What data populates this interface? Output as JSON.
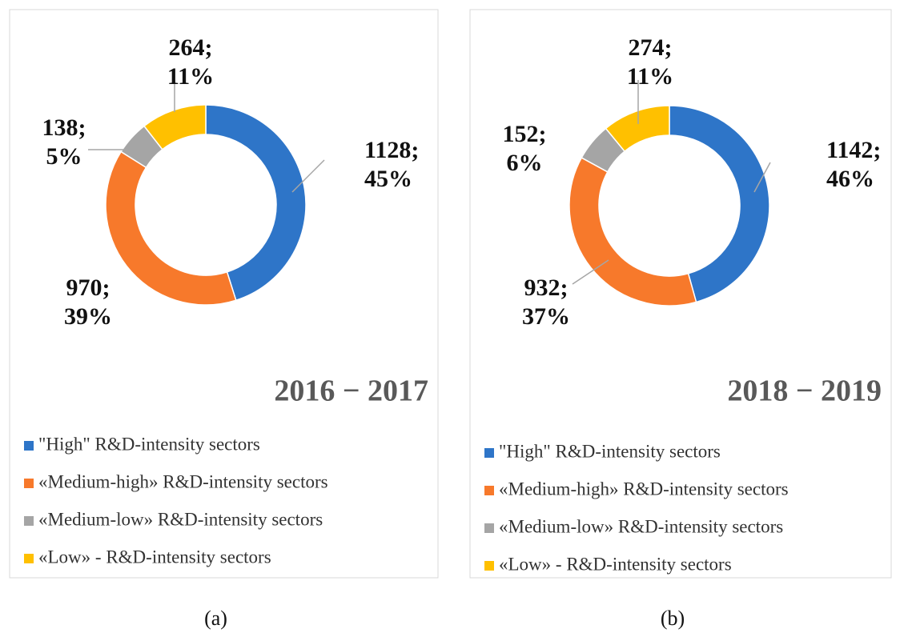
{
  "chart_data": [
    {
      "type": "pie",
      "title": "2016 − 2017",
      "caption": "(a)",
      "categories": [
        "\"High\" R&D-intensity sectors",
        "«Medium-high» R&D-intensity sectors",
        "«Medium-low» R&D-intensity sectors",
        "«Low» - R&D-intensity sectors"
      ],
      "values": [
        1128,
        970,
        138,
        264
      ],
      "value_labels": [
        "1128; 45%",
        "970; 39%",
        "138; 5%",
        "264; 11%"
      ],
      "colors": [
        "#2e75c8",
        "#f7792b",
        "#a5a5a5",
        "#ffc000"
      ]
    },
    {
      "type": "pie",
      "title": "2018 − 2019",
      "caption": "(b)",
      "categories": [
        "\"High\" R&D-intensity sectors",
        "«Medium-high» R&D-intensity sectors",
        "«Medium-low» R&D-intensity sectors",
        "«Low» - R&D-intensity sectors"
      ],
      "values": [
        1142,
        932,
        152,
        274
      ],
      "value_labels": [
        "1142; 46%",
        "932; 37%",
        "152; 6%",
        "274; 11%"
      ],
      "colors": [
        "#2e75c8",
        "#f7792b",
        "#a5a5a5",
        "#ffc000"
      ]
    }
  ]
}
